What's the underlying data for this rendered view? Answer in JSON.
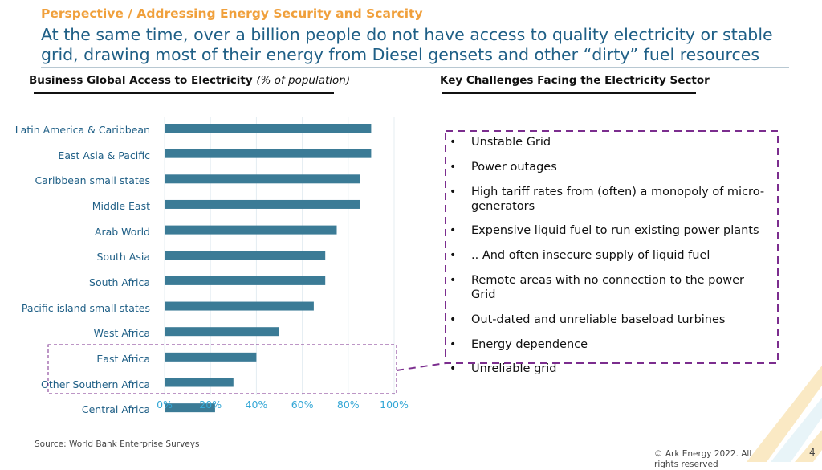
{
  "header": {
    "kicker": "Perspective / Addressing Energy Security and Scarcity",
    "headline": "At the same time, over a billion people do not have access to quality electricity or stable grid, drawing most of their energy from Diesel gensets and other “dirty” fuel resources"
  },
  "left_section": {
    "title": "Business Global Access to Electricity",
    "unit": "(% of population)"
  },
  "right_section": {
    "title": "Key Challenges Facing the Electricity Sector",
    "challenges": [
      "Unstable Grid",
      "Power outages",
      "High tariff rates from (often) a monopoly of micro-generators",
      "Expensive liquid fuel to run existing power plants",
      ".. And often insecure supply of liquid fuel",
      "Remote areas with no connection to the power Grid",
      "Out-dated and unreliable baseload turbines",
      "Energy dependence",
      "Unreliable grid"
    ]
  },
  "chart_data": {
    "type": "bar",
    "orientation": "horizontal",
    "categories": [
      "Latin America & Caribbean",
      "East Asia & Pacific",
      "Caribbean small states",
      "Middle East",
      "Arab World",
      "South Asia",
      "South Africa",
      "Pacific island small states",
      "West Africa",
      "East Africa",
      "Other Southern Africa",
      "Central Africa"
    ],
    "values": [
      90,
      90,
      85,
      85,
      75,
      70,
      70,
      65,
      50,
      40,
      30,
      22
    ],
    "xlim": [
      0,
      100
    ],
    "x_ticks": [
      "0%",
      "20%",
      "40%",
      "60%",
      "80%",
      "100%"
    ],
    "grid": true,
    "bar_color": "#3b7b96",
    "highlight_color": "#7b2d8e",
    "highlighted_categories": [
      "East Africa",
      "Other Southern Africa"
    ]
  },
  "footer": {
    "source": "Source: World Bank Enterprise Surveys",
    "copyright": "© Ark Energy 2022. All rights reserved",
    "page_number": "4"
  }
}
